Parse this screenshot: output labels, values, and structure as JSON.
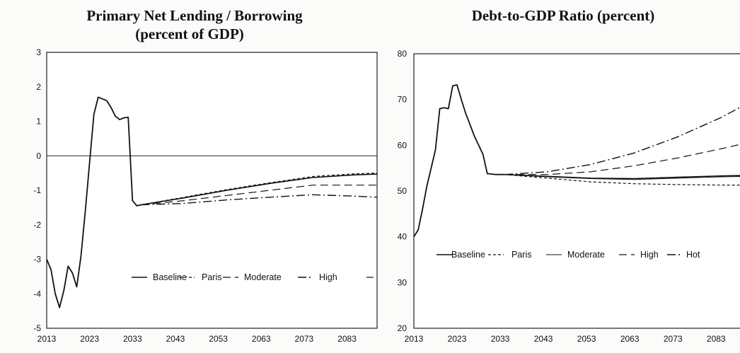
{
  "chart_data": [
    {
      "type": "line",
      "title": "Primary Net Lending / Borrowing",
      "subtitle": "(percent of GDP)",
      "xlabel": "",
      "ylabel": "",
      "xlim": [
        2013,
        2090
      ],
      "ylim": [
        -5,
        3
      ],
      "x_ticks": [
        2013,
        2023,
        2033,
        2043,
        2053,
        2063,
        2073,
        2083
      ],
      "y_ticks": [
        -5,
        -4,
        -3,
        -2,
        -1,
        0,
        1,
        2,
        3
      ],
      "zero_line": true,
      "grid": false,
      "legend": [
        "Baseline",
        "Paris",
        "Moderate",
        "High",
        ""
      ],
      "legend_position": "bottom-right",
      "history": {
        "x": [
          2013,
          2014,
          2015,
          2016,
          2017,
          2018,
          2019,
          2020,
          2021,
          2022,
          2023,
          2024,
          2025,
          2026,
          2027,
          2028,
          2029,
          2030,
          2031,
          2032,
          2033,
          2034,
          2035
        ],
        "values": [
          -3.0,
          -3.3,
          -4.0,
          -4.4,
          -3.9,
          -3.2,
          -3.4,
          -3.8,
          -2.9,
          -1.6,
          -0.2,
          1.2,
          1.7,
          1.65,
          1.6,
          1.4,
          1.15,
          1.05,
          1.1,
          1.12,
          -1.3,
          -1.45,
          -1.42
        ]
      },
      "series": [
        {
          "name": "Baseline",
          "style": "solid",
          "x": [
            2035,
            2045,
            2055,
            2065,
            2075,
            2085,
            2090
          ],
          "values": [
            -1.42,
            -1.22,
            -1.0,
            -0.8,
            -0.63,
            -0.55,
            -0.53
          ]
        },
        {
          "name": "Paris",
          "style": "short-dash",
          "x": [
            2035,
            2045,
            2055,
            2065,
            2075,
            2085,
            2090
          ],
          "values": [
            -1.42,
            -1.2,
            -0.98,
            -0.78,
            -0.6,
            -0.52,
            -0.5
          ]
        },
        {
          "name": "Moderate",
          "style": "long-dash",
          "x": [
            2035,
            2045,
            2055,
            2065,
            2075,
            2085,
            2090
          ],
          "values": [
            -1.42,
            -1.3,
            -1.15,
            -1.0,
            -0.85,
            -0.85,
            -0.85
          ]
        },
        {
          "name": "High",
          "style": "dash-dot",
          "x": [
            2035,
            2045,
            2055,
            2065,
            2075,
            2085,
            2090
          ],
          "values": [
            -1.42,
            -1.38,
            -1.28,
            -1.2,
            -1.13,
            -1.17,
            -1.2
          ]
        }
      ]
    },
    {
      "type": "line",
      "title": "Debt-to-GDP Ratio (percent)",
      "subtitle": "",
      "xlabel": "",
      "ylabel": "",
      "xlim": [
        2013,
        2090
      ],
      "ylim": [
        20,
        80
      ],
      "x_ticks": [
        2013,
        2023,
        2033,
        2043,
        2053,
        2063,
        2073,
        2083
      ],
      "y_ticks": [
        20,
        30,
        40,
        50,
        60,
        70,
        80
      ],
      "zero_line": false,
      "grid": false,
      "legend": [
        "Baseline",
        "Paris",
        "Moderate",
        "High",
        "Hot"
      ],
      "legend_position": "center",
      "history": {
        "x": [
          2013,
          2014,
          2015,
          2016,
          2017,
          2018,
          2019,
          2020,
          2021,
          2022,
          2023,
          2024,
          2025,
          2026,
          2027,
          2028,
          2029,
          2030,
          2031,
          2032,
          2033,
          2034
        ],
        "values": [
          40,
          41.5,
          46,
          51,
          55,
          59,
          68,
          68.2,
          68,
          73,
          73.2,
          70,
          67,
          64.5,
          62,
          60,
          58,
          53.8,
          53.7,
          53.6,
          53.6,
          53.6
        ]
      },
      "series": [
        {
          "name": "Baseline",
          "style": "solid",
          "x": [
            2034,
            2044,
            2054,
            2064,
            2074,
            2084,
            2090
          ],
          "values": [
            53.6,
            53.2,
            52.8,
            52.7,
            53.0,
            53.3,
            53.4
          ]
        },
        {
          "name": "Paris",
          "style": "short-dash",
          "x": [
            2034,
            2044,
            2054,
            2064,
            2074,
            2084,
            2090
          ],
          "values": [
            53.6,
            52.8,
            52.0,
            51.6,
            51.4,
            51.3,
            51.3
          ]
        },
        {
          "name": "Moderate",
          "style": "solid-thin",
          "x": [
            2034,
            2044,
            2054,
            2064,
            2074,
            2084,
            2090
          ],
          "values": [
            53.6,
            53.1,
            52.7,
            52.5,
            52.8,
            53.1,
            53.2
          ]
        },
        {
          "name": "High",
          "style": "long-dash",
          "x": [
            2034,
            2044,
            2054,
            2064,
            2074,
            2084,
            2090
          ],
          "values": [
            53.6,
            53.6,
            54.2,
            55.5,
            57.2,
            59.2,
            60.5
          ]
        },
        {
          "name": "Hot",
          "style": "dash-dot",
          "x": [
            2034,
            2044,
            2054,
            2064,
            2074,
            2084,
            2090
          ],
          "values": [
            53.6,
            54.2,
            55.8,
            58.3,
            61.8,
            66.0,
            69.0
          ]
        }
      ]
    }
  ]
}
